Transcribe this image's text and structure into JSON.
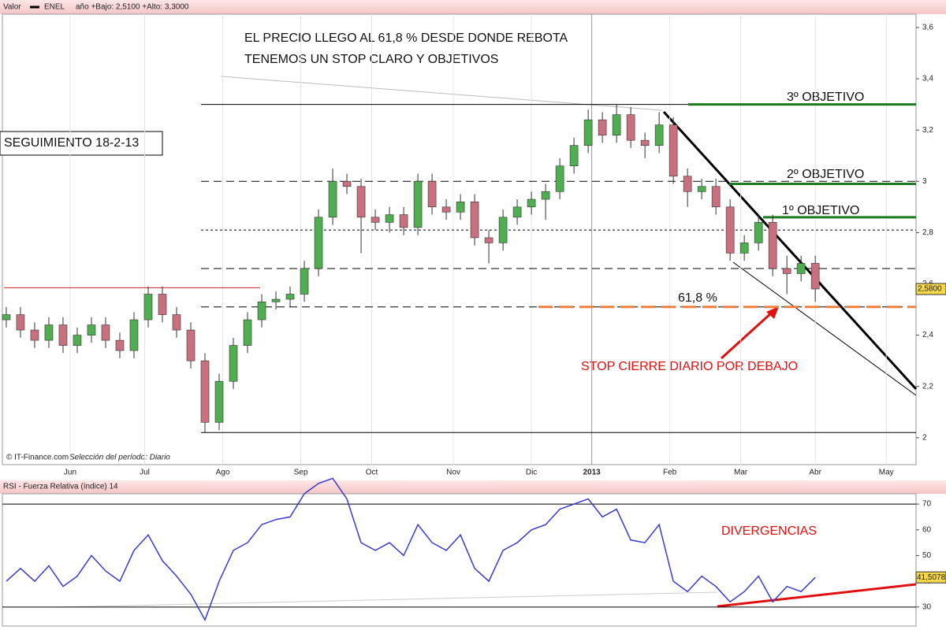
{
  "header": {
    "valor": "Valor",
    "ticker": "ENEL",
    "range": "año +Bajo: 2,5100 +Alto: 3,3000"
  },
  "footer": {
    "source": "© IT-Finance.com",
    "period": "Selección del período: Diario"
  },
  "chart_data": [
    {
      "type": "candlestick",
      "x": [
        0,
        4,
        8,
        12,
        16,
        20,
        24,
        28,
        32,
        36,
        40,
        44,
        48,
        52,
        56,
        60,
        64,
        68,
        72,
        76,
        80,
        84,
        88,
        92,
        96,
        100,
        104,
        108,
        112,
        116,
        120,
        124,
        128,
        132,
        136,
        140,
        144,
        148,
        152,
        156,
        160,
        164,
        168,
        172,
        176,
        180,
        184,
        188,
        192,
        196,
        200,
        204,
        208,
        212,
        216,
        220,
        224,
        228
      ],
      "open": [
        2.46,
        2.48,
        2.42,
        2.38,
        2.44,
        2.36,
        2.4,
        2.44,
        2.38,
        2.34,
        2.46,
        2.56,
        2.48,
        2.42,
        2.3,
        2.06,
        2.22,
        2.36,
        2.46,
        2.53,
        2.54,
        2.56,
        2.66,
        2.86,
        3.0,
        2.98,
        2.86,
        2.84,
        2.87,
        2.82,
        3.0,
        2.9,
        2.88,
        2.92,
        2.78,
        2.76,
        2.86,
        2.9,
        2.93,
        2.96,
        3.06,
        3.14,
        3.24,
        3.18,
        3.26,
        3.16,
        3.14,
        3.22,
        3.02,
        2.96,
        2.98,
        2.9,
        2.72,
        2.76,
        2.84,
        2.66,
        2.64,
        2.68
      ],
      "high": [
        2.51,
        2.51,
        2.45,
        2.47,
        2.47,
        2.43,
        2.47,
        2.47,
        2.41,
        2.49,
        2.59,
        2.59,
        2.51,
        2.45,
        2.33,
        2.25,
        2.39,
        2.49,
        2.56,
        2.57,
        2.59,
        2.69,
        2.89,
        3.05,
        3.03,
        3.01,
        2.89,
        2.9,
        2.9,
        3.03,
        3.03,
        2.93,
        2.95,
        2.95,
        2.81,
        2.89,
        2.93,
        2.96,
        2.99,
        3.09,
        3.17,
        3.28,
        3.27,
        3.3,
        3.29,
        3.19,
        3.27,
        3.25,
        3.05,
        3.01,
        3.01,
        2.93,
        2.79,
        2.87,
        2.87,
        2.71,
        2.71,
        2.71
      ],
      "low": [
        2.43,
        2.39,
        2.35,
        2.35,
        2.33,
        2.33,
        2.37,
        2.35,
        2.31,
        2.31,
        2.43,
        2.45,
        2.39,
        2.27,
        2.02,
        2.03,
        2.19,
        2.33,
        2.43,
        2.5,
        2.51,
        2.53,
        2.63,
        2.83,
        2.95,
        2.72,
        2.81,
        2.8,
        2.79,
        2.79,
        2.87,
        2.85,
        2.85,
        2.75,
        2.68,
        2.73,
        2.83,
        2.87,
        2.85,
        2.93,
        3.03,
        3.11,
        3.15,
        3.15,
        3.13,
        3.09,
        3.11,
        2.99,
        2.9,
        2.93,
        2.87,
        2.69,
        2.69,
        2.73,
        2.63,
        2.56,
        2.61,
        2.53
      ],
      "close": [
        2.48,
        2.42,
        2.38,
        2.44,
        2.36,
        2.4,
        2.44,
        2.38,
        2.34,
        2.46,
        2.56,
        2.48,
        2.42,
        2.3,
        2.06,
        2.22,
        2.36,
        2.46,
        2.53,
        2.54,
        2.56,
        2.66,
        2.86,
        3.0,
        2.98,
        2.86,
        2.84,
        2.87,
        2.82,
        3.0,
        2.9,
        2.88,
        2.92,
        2.78,
        2.76,
        2.86,
        2.9,
        2.93,
        2.96,
        3.06,
        3.14,
        3.24,
        3.18,
        3.26,
        3.16,
        3.14,
        3.22,
        3.02,
        2.96,
        2.98,
        2.9,
        2.72,
        2.76,
        2.84,
        2.66,
        2.64,
        2.68,
        2.58
      ],
      "up_color": "#4fae4f",
      "down_color": "#c9707e",
      "xlim": [
        -1.1,
        256.4
      ],
      "xticks": [
        {
          "value": 18,
          "label": "Jun"
        },
        {
          "value": 39,
          "label": "Jul"
        },
        {
          "value": 61,
          "label": "Ago"
        },
        {
          "value": 83,
          "label": "Sep"
        },
        {
          "value": 103,
          "label": "Oct"
        },
        {
          "value": 126,
          "label": "Nov"
        },
        {
          "value": 148,
          "label": "Dic"
        },
        {
          "value": 165,
          "label": "2013"
        },
        {
          "value": 187,
          "label": "Feb"
        },
        {
          "value": 207,
          "label": "Mar"
        },
        {
          "value": 228,
          "label": "Abr"
        },
        {
          "value": 248,
          "label": "May"
        }
      ],
      "ylim": [
        1.895,
        3.652
      ],
      "yticks": [
        2,
        {
          "value": 2.2,
          "label": "2,2"
        },
        {
          "value": 2.4,
          "label": "2,4"
        },
        {
          "value": 2.6,
          "label": "2,6"
        },
        {
          "value": 2.8,
          "label": "2,8"
        },
        3,
        {
          "value": 3.2,
          "label": "3,2"
        },
        {
          "value": 3.4,
          "label": "3,4"
        },
        {
          "value": 3.6,
          "label": "3,6"
        }
      ],
      "last_label": {
        "value": 2.58,
        "label": "2,5800"
      },
      "levels": [
        {
          "value": 3.3,
          "color": "#000000",
          "style": "solid"
        },
        {
          "value": 3.3,
          "color": "#1e7a1e",
          "style": "thick"
        },
        {
          "value": 3.0,
          "color": "#000000",
          "style": "dashed"
        },
        {
          "value": 2.99,
          "color": "#1e7a1e",
          "style": "thick"
        },
        {
          "value": 2.86,
          "color": "#1e7a1e",
          "style": "thick"
        },
        {
          "value": 2.81,
          "color": "#000000",
          "style": "dotted"
        },
        {
          "value": 2.66,
          "color": "#000000",
          "style": "dashed"
        },
        {
          "value": 2.51,
          "color": "#000000",
          "style": "dashed"
        },
        {
          "value": 2.51,
          "color": "#f08040",
          "style": "thickdash"
        },
        {
          "value": 2.585,
          "color": "#d02020",
          "style": "solid"
        },
        {
          "value": 2.02,
          "color": "#000000",
          "style": "solid"
        }
      ],
      "annotations": [
        "EL  PRECIO  LLEGO AL  61,8 % DESDE DONDE  REBOTA",
        "TENEMOS  UN STOP  CLARO  Y  OBJETIVOS",
        "SEGUIMIENTO  18-2-13",
        "3º OBJETIVO",
        "2º OBJETIVO",
        "1º  OBJETIVO",
        "61,8  %",
        "STOP  CIERRE  DIARIO  POR  DEBAJO"
      ]
    },
    {
      "type": "line",
      "title": "RSI - Fuerza Relativa (índice) 14",
      "x": [
        0,
        4,
        8,
        12,
        16,
        20,
        24,
        28,
        32,
        36,
        40,
        44,
        48,
        52,
        56,
        60,
        64,
        68,
        72,
        76,
        80,
        84,
        88,
        92,
        96,
        100,
        104,
        108,
        112,
        116,
        120,
        124,
        128,
        132,
        136,
        140,
        144,
        148,
        152,
        156,
        160,
        164,
        168,
        172,
        176,
        180,
        184,
        188,
        192,
        196,
        200,
        204,
        208,
        212,
        216,
        220,
        224,
        228
      ],
      "values": [
        40,
        45,
        40,
        46,
        38,
        42,
        50,
        44,
        40,
        52,
        58,
        48,
        42,
        35,
        25,
        40,
        52,
        55,
        62,
        64,
        65,
        74,
        78,
        80,
        72,
        55,
        52,
        55,
        50,
        62,
        55,
        52,
        58,
        45,
        40,
        52,
        55,
        60,
        62,
        68,
        70,
        72,
        65,
        68,
        56,
        55,
        62,
        40,
        36,
        42,
        38,
        32,
        36,
        42,
        32,
        38,
        36,
        41.5078
      ],
      "color": "#3a3acc",
      "xlim": [
        -1.1,
        256.4
      ],
      "ylim": [
        22.6,
        74
      ],
      "yticks": [
        30,
        40,
        50,
        60,
        70
      ],
      "levels": [
        70,
        30
      ],
      "last_label": {
        "value": 41.5078,
        "label": "41,5078"
      },
      "annotations": [
        "DIVERGENCIAS"
      ]
    }
  ]
}
